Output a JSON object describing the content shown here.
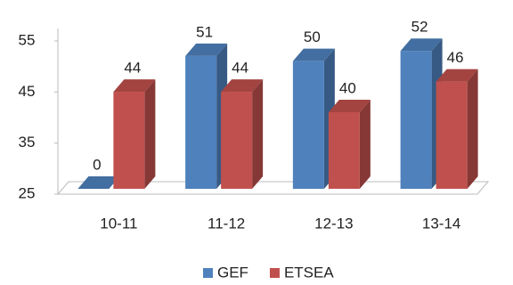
{
  "chart_data": {
    "type": "bar3d",
    "categories": [
      "10-11",
      "11-12",
      "12-13",
      "13-14"
    ],
    "series": [
      {
        "name": "GEF",
        "color": "#4f81bd",
        "values": [
          0,
          51,
          50,
          52
        ]
      },
      {
        "name": "ETSEA",
        "color": "#c0504d",
        "values": [
          44,
          44,
          40,
          46
        ]
      }
    ],
    "ylim": [
      25,
      55
    ],
    "yticks": [
      25,
      35,
      45,
      55
    ],
    "grid": false,
    "legend": "bottom"
  }
}
